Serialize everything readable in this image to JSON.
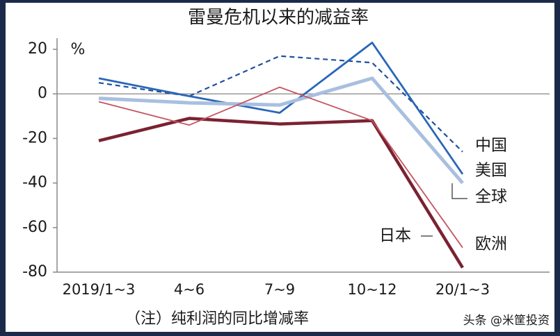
{
  "chart_data": {
    "type": "line",
    "title": "雷曼危机以来的减益率",
    "y_unit": "%",
    "note": "（注）纯利润的同比增减率",
    "watermark": "头条 @米筐投资",
    "categories": [
      "2019/1~3",
      "4~6",
      "7~9",
      "10~12",
      "20/1~3"
    ],
    "ylim": [
      -80,
      25
    ],
    "yticks": [
      20,
      0,
      -20,
      -40,
      -60,
      -80
    ],
    "series": [
      {
        "name": "中国",
        "color": "#1f4f9c",
        "dashed": true,
        "width": 2.2,
        "values": [
          5,
          -1,
          17,
          14,
          -26
        ]
      },
      {
        "name": "美国",
        "color": "#2a66b8",
        "dashed": false,
        "width": 2.8,
        "values": [
          7,
          -1,
          -8.5,
          23,
          -36
        ]
      },
      {
        "name": "全球",
        "color": "#a9bfdf",
        "dashed": false,
        "width": 5,
        "values": [
          -2,
          -4,
          -5,
          7,
          -40
        ]
      },
      {
        "name": "日本",
        "color": "#7a2232",
        "dashed": false,
        "width": 4.5,
        "values": [
          -21,
          -11,
          -13.5,
          -12,
          -78
        ]
      },
      {
        "name": "欧洲",
        "color": "#c4545f",
        "dashed": false,
        "width": 1.8,
        "values": [
          -3.5,
          -14,
          3,
          -12,
          -69
        ]
      }
    ]
  }
}
